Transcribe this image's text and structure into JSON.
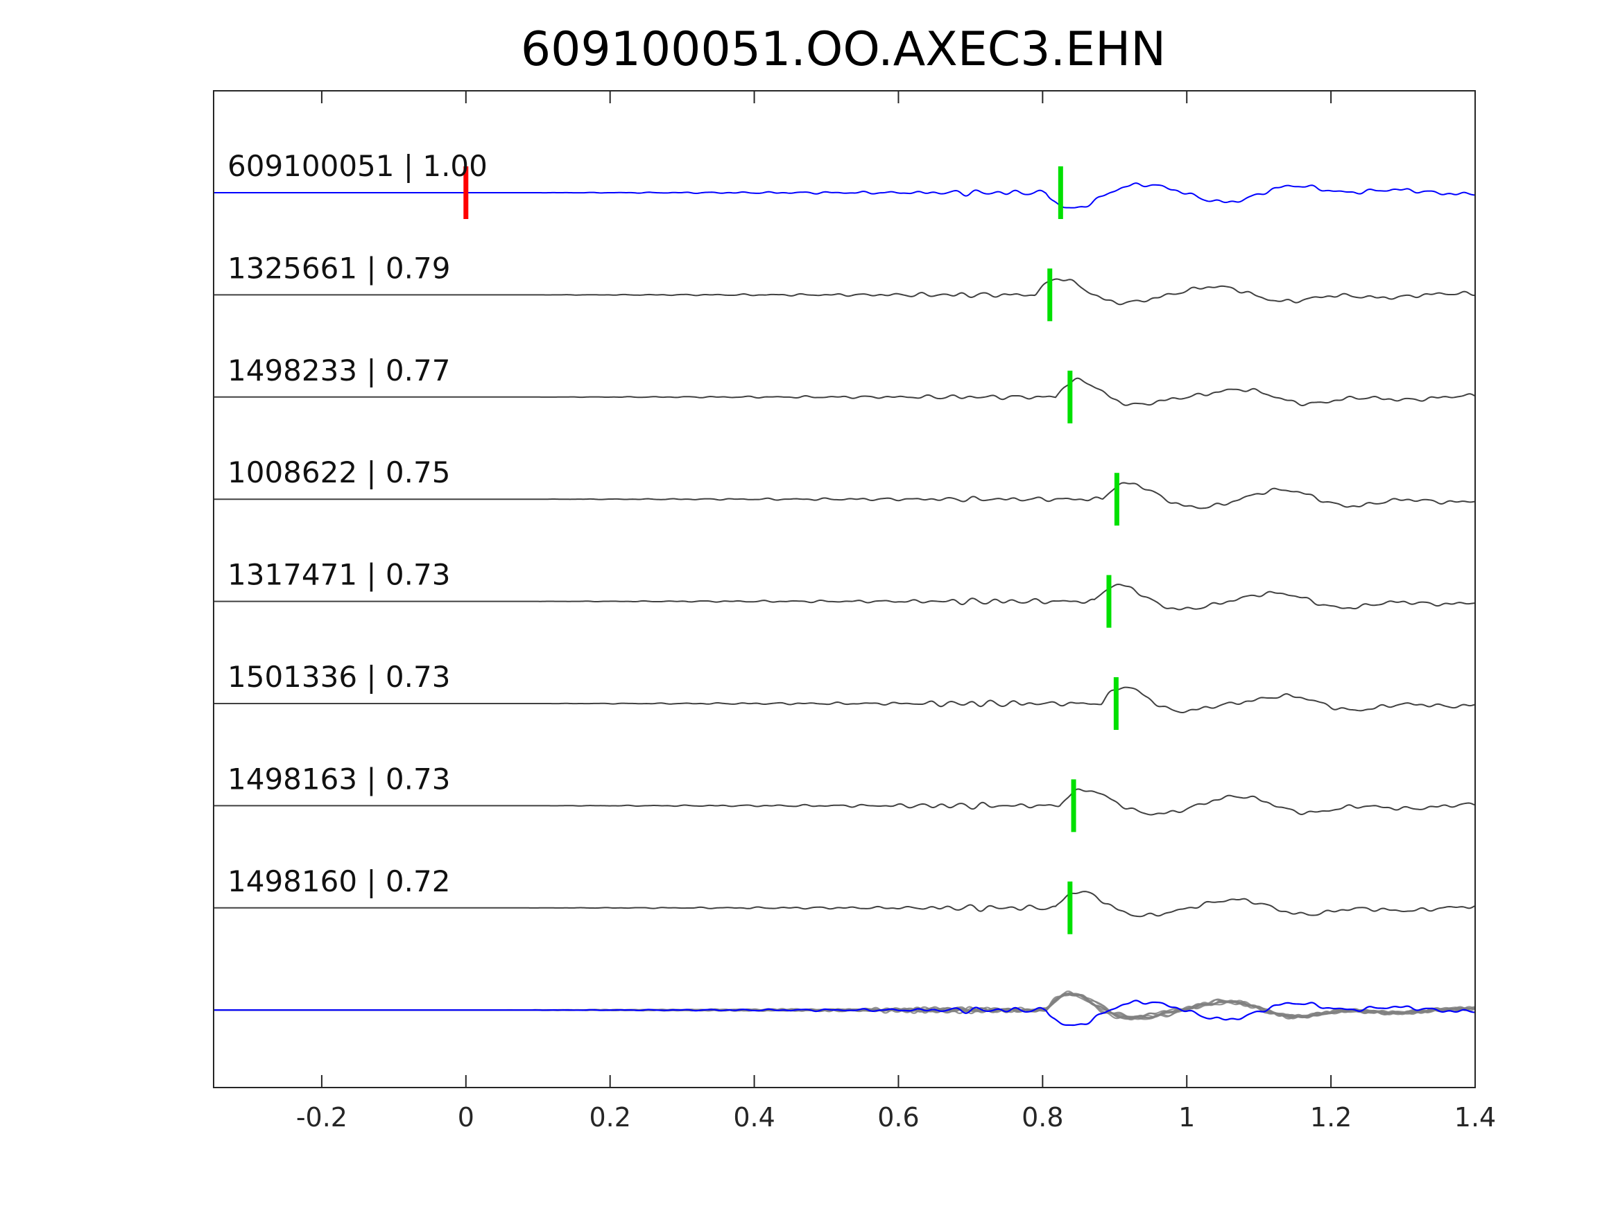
{
  "chart_data": {
    "type": "line",
    "title": "609100051.OO.AXEC3.EHN",
    "xlabel": "",
    "ylabel": "",
    "xlim": [
      -0.35,
      1.4
    ],
    "xticks": [
      -0.2,
      0,
      0.2,
      0.4,
      0.6,
      0.8,
      1,
      1.2,
      1.4
    ],
    "xtick_labels": [
      "-0.2",
      "0",
      "0.2",
      "0.4",
      "0.6",
      "0.8",
      "1",
      "1.2",
      "1.4"
    ],
    "grid": false,
    "colors": {
      "template": "#0000ff",
      "match": "#404040",
      "stack": "#808080",
      "origin_marker": "#ff0000",
      "pick_marker": "#00e000"
    },
    "origin_time": 0,
    "traces": [
      {
        "event_id": "609100051",
        "cc": "1.00",
        "label": "609100051 | 1.00",
        "pick": 0.825,
        "role": "template"
      },
      {
        "event_id": "1325661",
        "cc": "0.79",
        "label": "1325661 | 0.79",
        "pick": 0.81,
        "role": "match"
      },
      {
        "event_id": "1498233",
        "cc": "0.77",
        "label": "1498233 | 0.77",
        "pick": 0.838,
        "role": "match"
      },
      {
        "event_id": "1008622",
        "cc": "0.75",
        "label": "1008622 | 0.75",
        "pick": 0.903,
        "role": "match"
      },
      {
        "event_id": "1317471",
        "cc": "0.73",
        "label": "1317471 | 0.73",
        "pick": 0.892,
        "role": "match"
      },
      {
        "event_id": "1501336",
        "cc": "0.73",
        "label": "1501336 | 0.73",
        "pick": 0.902,
        "role": "match"
      },
      {
        "event_id": "1498163",
        "cc": "0.73",
        "label": "1498163 | 0.73",
        "pick": 0.843,
        "role": "match"
      },
      {
        "event_id": "1498160",
        "cc": "0.72",
        "label": "1498160 | 0.72",
        "pick": 0.838,
        "role": "match"
      }
    ]
  }
}
